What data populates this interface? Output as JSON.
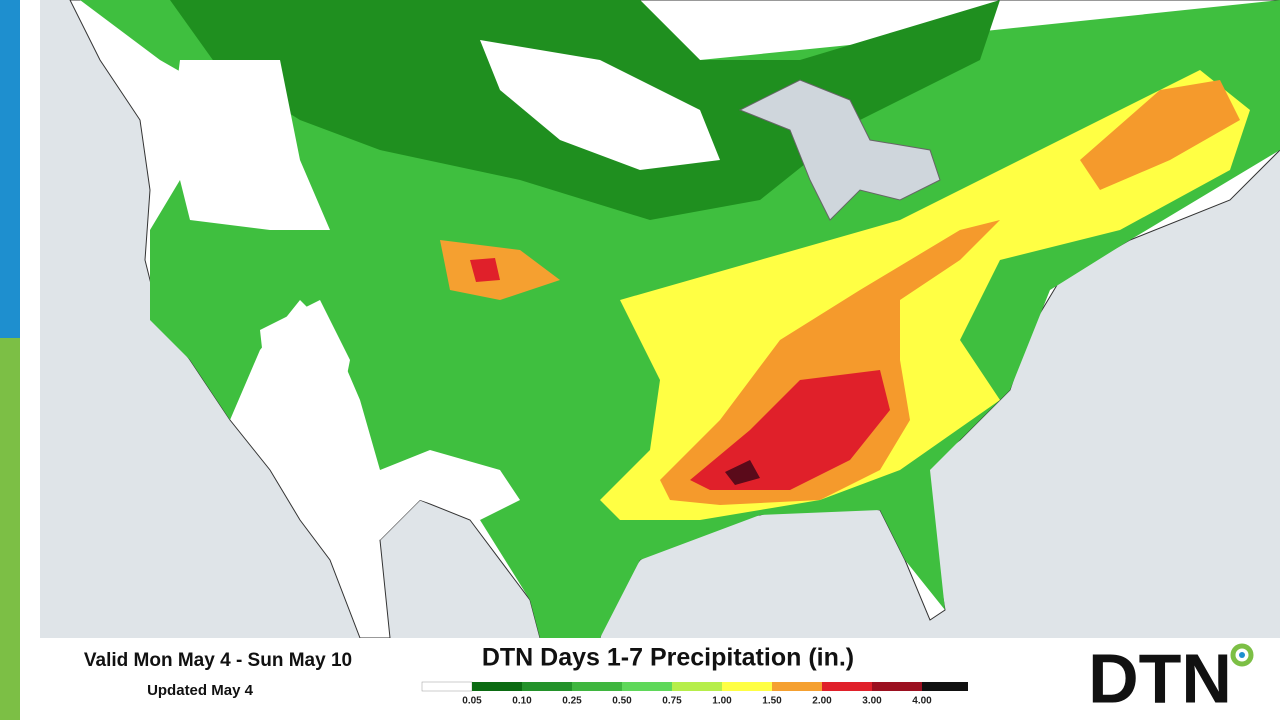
{
  "valid_range": "Valid Mon May 4 - Sun May 10",
  "updated": "Updated May 4",
  "title": "DTN Days 1-7 Precipitation (in.)",
  "legend": {
    "ticks": [
      "0.05",
      "0.10",
      "0.25",
      "0.50",
      "0.75",
      "1.00",
      "1.50",
      "2.00",
      "3.00",
      "4.00"
    ]
  },
  "logo": "DTN"
}
